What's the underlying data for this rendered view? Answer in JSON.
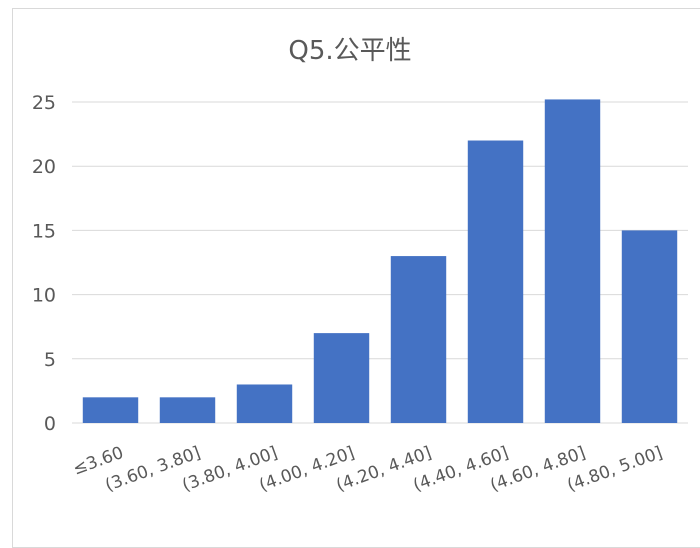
{
  "chart_data": {
    "type": "bar",
    "title": "Q5.公平性",
    "categories": [
      "≤3.60",
      "(3.60, 3.80]",
      "(3.80, 4.00]",
      "(4.00, 4.20]",
      "(4.20, 4.40]",
      "(4.40, 4.60]",
      "(4.60, 4.80]",
      "(4.80, 5.00]"
    ],
    "values": [
      2,
      2,
      3,
      7,
      13,
      22,
      25.2,
      15
    ],
    "ylim": [
      0,
      25
    ],
    "yticks": [
      0,
      5,
      10,
      15,
      20,
      25
    ],
    "grid": true,
    "bar_color": "#4472c4"
  }
}
